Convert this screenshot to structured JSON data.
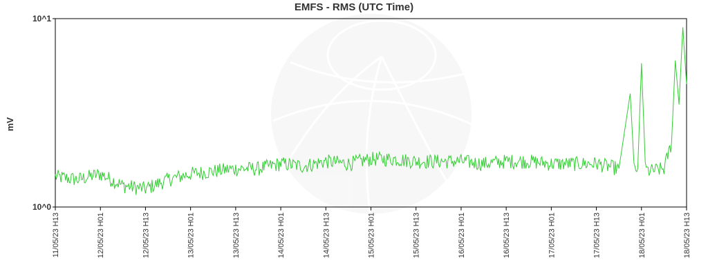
{
  "chart_data": {
    "type": "line",
    "title": "EMFS - RMS (UTC Time)",
    "ylabel": "mV",
    "xlabel": "",
    "yscale": "log",
    "ylim": [
      1,
      10
    ],
    "yticks": [
      "10^0",
      "10^1"
    ],
    "xlim": [
      "11/05/23 H13",
      "18/05/23 H13"
    ],
    "xticks": [
      "11/05/23 H13",
      "12/05/23 H01",
      "12/05/23 H13",
      "13/05/23 H01",
      "13/05/23 H13",
      "14/05/23 H01",
      "14/05/23 H13",
      "15/05/23 H01",
      "15/05/23 H13",
      "16/05/23 H01",
      "16/05/23 H13",
      "17/05/23 H01",
      "17/05/23 H13",
      "18/05/23 H01",
      "18/05/23 H13"
    ],
    "grid": false,
    "line_color": "#33cc33",
    "series": [
      {
        "x": [
          "11/05/23 H13",
          "11/05/23 H19",
          "12/05/23 H01",
          "12/05/23 H07",
          "12/05/23 H13",
          "12/05/23 H19",
          "13/05/23 H01",
          "13/05/23 H07",
          "13/05/23 H13",
          "13/05/23 H19",
          "14/05/23 H01",
          "14/05/23 H07",
          "14/05/23 H13",
          "14/05/23 H19",
          "15/05/23 H01",
          "15/05/23 H07",
          "15/05/23 H13",
          "15/05/23 H19",
          "16/05/23 H01",
          "16/05/23 H07",
          "16/05/23 H13",
          "16/05/23 H19",
          "17/05/23 H01",
          "17/05/23 H07",
          "17/05/23 H13",
          "17/05/23 H19",
          "17/05/23 H22",
          "17/05/23 H23",
          "18/05/23 H00",
          "18/05/23 H01",
          "18/05/23 H02",
          "18/05/23 H03",
          "18/05/23 H07",
          "18/05/23 H09",
          "18/05/23 H10",
          "18/05/23 H11",
          "18/05/23 H12",
          "18/05/23 H13"
        ],
        "values": [
          1.45,
          1.4,
          1.5,
          1.3,
          1.25,
          1.4,
          1.5,
          1.55,
          1.6,
          1.6,
          1.7,
          1.65,
          1.75,
          1.7,
          1.8,
          1.8,
          1.75,
          1.75,
          1.75,
          1.7,
          1.75,
          1.75,
          1.7,
          1.7,
          1.7,
          1.6,
          4.0,
          1.6,
          1.6,
          5.8,
          1.6,
          1.55,
          1.6,
          2.2,
          6.0,
          3.5,
          9.0,
          4.5
        ]
      }
    ]
  }
}
